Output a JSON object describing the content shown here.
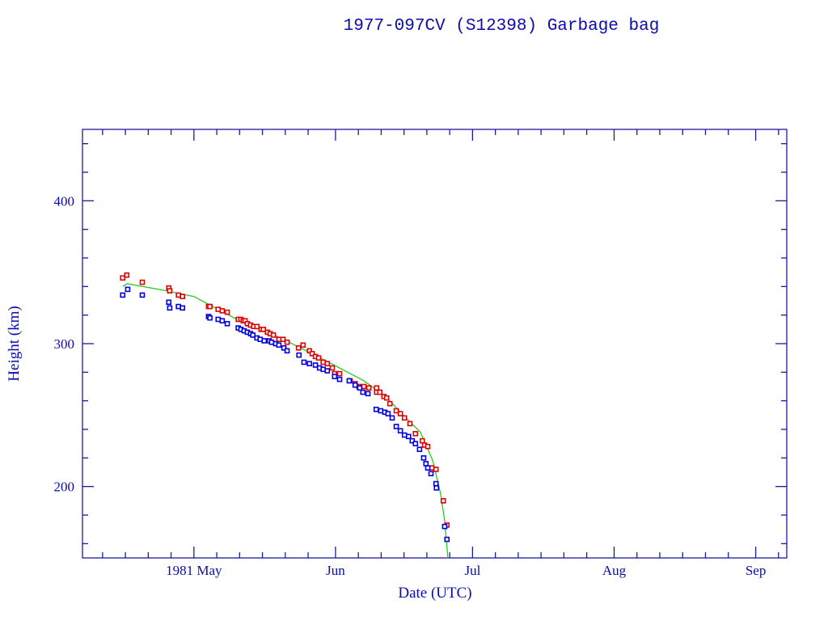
{
  "chart_data": {
    "type": "scatter",
    "title": "1977-097CV (S12398) Garbage bag",
    "xlabel": "Date (UTC)",
    "ylabel": "Height (km)",
    "x_units": "day of year 1981",
    "xlim": [
      96.6,
      250.8
    ],
    "ylim": [
      150,
      450
    ],
    "grid": false,
    "x_major_ticks": [
      {
        "value": 121,
        "label": "1981 May"
      },
      {
        "value": 152,
        "label": "Jun"
      },
      {
        "value": 182,
        "label": "Jul"
      },
      {
        "value": 213,
        "label": "Aug"
      },
      {
        "value": 244,
        "label": "Sep"
      }
    ],
    "x_minor_ticks": [
      101,
      106,
      111,
      116,
      126,
      131,
      136,
      141,
      146,
      157,
      162,
      167,
      172,
      177,
      187,
      192,
      197,
      202,
      207,
      218,
      223,
      228,
      233,
      238,
      249
    ],
    "y_major_ticks": [
      {
        "value": 200,
        "label": "200"
      },
      {
        "value": 300,
        "label": "300"
      },
      {
        "value": 400,
        "label": "400"
      }
    ],
    "y_minor_step": 20,
    "colors": {
      "axis": "#1a1aa0",
      "text": "#0b0bb0",
      "apogee": "#e00000",
      "perigee": "#0000e0",
      "fit": "#22cc22"
    },
    "series": [
      {
        "name": "apogee",
        "color": "#e00000",
        "points": [
          [
            105.4,
            346
          ],
          [
            106.3,
            348
          ],
          [
            109.7,
            343
          ],
          [
            115.5,
            339
          ],
          [
            115.7,
            337
          ],
          [
            117.6,
            334
          ],
          [
            118.5,
            333
          ],
          [
            124.2,
            326
          ],
          [
            124.5,
            326
          ],
          [
            126.3,
            324
          ],
          [
            127.2,
            323
          ],
          [
            128.3,
            322
          ],
          [
            130.7,
            317
          ],
          [
            131.3,
            317
          ],
          [
            131.8,
            316
          ],
          [
            132.2,
            316
          ],
          [
            132.7,
            314
          ],
          [
            133.4,
            313
          ],
          [
            134.1,
            312
          ],
          [
            134.8,
            312
          ],
          [
            135.7,
            310
          ],
          [
            136.2,
            310
          ],
          [
            137.1,
            308
          ],
          [
            137.7,
            307
          ],
          [
            138.4,
            306
          ],
          [
            139.6,
            303
          ],
          [
            140.5,
            303
          ],
          [
            141.4,
            301
          ],
          [
            143.9,
            297
          ],
          [
            144.9,
            299
          ],
          [
            146.3,
            295
          ],
          [
            146.9,
            293
          ],
          [
            147.6,
            291
          ],
          [
            148.3,
            290
          ],
          [
            149.3,
            287
          ],
          [
            150.2,
            286
          ],
          [
            151.3,
            283
          ],
          [
            151.8,
            279
          ],
          [
            152.9,
            279
          ],
          [
            155.2,
            274
          ],
          [
            156.3,
            272
          ],
          [
            157.1,
            270
          ],
          [
            158.2,
            270
          ],
          [
            159.3,
            269
          ],
          [
            161.0,
            269
          ],
          [
            161.0,
            266
          ],
          [
            161.7,
            266
          ],
          [
            162.6,
            263
          ],
          [
            163.2,
            262
          ],
          [
            163.9,
            258
          ],
          [
            165.3,
            253
          ],
          [
            166.2,
            251
          ],
          [
            167.1,
            248
          ],
          [
            168.3,
            244
          ],
          [
            169.5,
            237
          ],
          [
            171.0,
            232
          ],
          [
            171.5,
            229
          ],
          [
            172.2,
            228
          ],
          [
            173.1,
            213
          ],
          [
            174.0,
            212
          ],
          [
            175.6,
            190
          ],
          [
            176.4,
            173
          ]
        ]
      },
      {
        "name": "perigee",
        "color": "#0000e0",
        "points": [
          [
            105.4,
            334
          ],
          [
            106.5,
            338
          ],
          [
            109.7,
            334
          ],
          [
            115.5,
            329
          ],
          [
            115.7,
            325
          ],
          [
            117.6,
            326
          ],
          [
            118.5,
            325
          ],
          [
            124.2,
            319
          ],
          [
            124.5,
            318
          ],
          [
            126.3,
            317
          ],
          [
            127.2,
            316
          ],
          [
            128.3,
            314
          ],
          [
            130.7,
            311
          ],
          [
            131.3,
            310
          ],
          [
            132.0,
            309
          ],
          [
            132.7,
            308
          ],
          [
            133.4,
            307
          ],
          [
            133.9,
            306
          ],
          [
            134.8,
            304
          ],
          [
            135.5,
            303
          ],
          [
            136.4,
            302
          ],
          [
            137.5,
            302
          ],
          [
            138.0,
            301
          ],
          [
            138.9,
            300
          ],
          [
            139.6,
            299
          ],
          [
            140.7,
            297
          ],
          [
            141.4,
            295
          ],
          [
            144.0,
            292
          ],
          [
            145.1,
            287
          ],
          [
            146.3,
            286
          ],
          [
            147.6,
            285
          ],
          [
            148.5,
            283
          ],
          [
            149.3,
            282
          ],
          [
            150.2,
            281
          ],
          [
            151.8,
            277
          ],
          [
            152.9,
            275
          ],
          [
            155.0,
            274
          ],
          [
            156.3,
            271
          ],
          [
            157.3,
            269
          ],
          [
            158.0,
            266
          ],
          [
            159.1,
            265
          ],
          [
            160.9,
            254
          ],
          [
            161.9,
            253
          ],
          [
            162.8,
            252
          ],
          [
            163.5,
            251
          ],
          [
            164.4,
            248
          ],
          [
            165.3,
            242
          ],
          [
            166.2,
            239
          ],
          [
            167.1,
            236
          ],
          [
            168.0,
            235
          ],
          [
            168.8,
            232
          ],
          [
            169.5,
            230
          ],
          [
            170.4,
            226
          ],
          [
            171.3,
            220
          ],
          [
            171.8,
            216
          ],
          [
            172.2,
            213
          ],
          [
            172.9,
            209
          ],
          [
            174.0,
            202
          ],
          [
            174.1,
            199
          ],
          [
            175.9,
            172
          ],
          [
            176.4,
            163
          ]
        ]
      }
    ],
    "fit_line": {
      "name": "fit",
      "color": "#22cc22",
      "points": [
        [
          105.4,
          340
        ],
        [
          106.4,
          342
        ],
        [
          115,
          337
        ],
        [
          121,
          333
        ],
        [
          131.6,
          315
        ],
        [
          140,
          304
        ],
        [
          149.3,
          289
        ],
        [
          158.2,
          274
        ],
        [
          163,
          263
        ],
        [
          167.1,
          249
        ],
        [
          170.6,
          238
        ],
        [
          173.3,
          218
        ],
        [
          175,
          195
        ],
        [
          175.9,
          176
        ],
        [
          176.6,
          150
        ]
      ]
    }
  }
}
